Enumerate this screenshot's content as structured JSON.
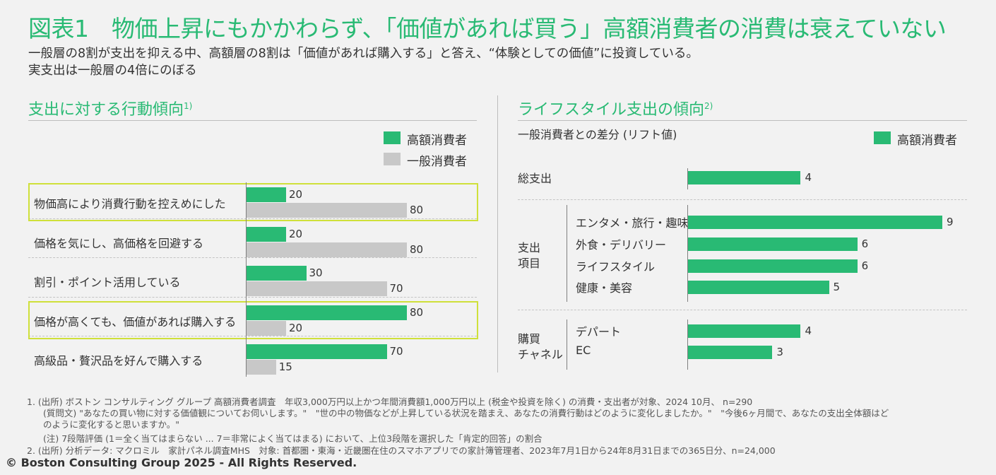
{
  "title": "図表1　物価上昇にもかかわらず、「価値があれば買う」高額消費者の消費は衰えていない",
  "subtitle_lines": [
    "一般層の8割が支出を抑える中、高額層の8割は「価値があれば購入する」と答え、“体験としての価値”に投資している。",
    "実支出は一般層の4倍にのぼる"
  ],
  "colors": {
    "accent": "#29ba74",
    "gray_bar": "#c8c8c8",
    "highlight": "#cfe03a"
  },
  "chart_data": [
    {
      "type": "bar",
      "orientation": "horizontal",
      "title": "支出に対する行動傾向",
      "title_sup": "1)",
      "categories": [
        "物価高により消費行動を控えめにした",
        "価格を気にし、高価格を回避する",
        "割引・ポイント活用している",
        "価格が高くても、価値があれば購入する",
        "高級品・贅沢品を好んで購入する"
      ],
      "series": [
        {
          "name": "高額消費者",
          "values": [
            20,
            20,
            30,
            80,
            70
          ]
        },
        {
          "name": "一般消費者",
          "values": [
            80,
            80,
            70,
            20,
            15
          ]
        }
      ],
      "highlighted_categories": [
        0,
        3
      ],
      "xlim": [
        0,
        100
      ]
    },
    {
      "type": "bar",
      "orientation": "horizontal",
      "title": "ライフスタイル支出の傾向",
      "title_sup": "2)",
      "subtitle": "一般消費者との差分 (リフト値)",
      "legend": "高額消費者",
      "groups": [
        {
          "label": "",
          "categories": [
            "総支出"
          ],
          "values": [
            4
          ]
        },
        {
          "label": "支出\n項目",
          "categories": [
            "エンタメ・旅行・趣味",
            "外食・デリバリー",
            "ライフスタイル",
            "健康・美容"
          ],
          "values": [
            9,
            6,
            6,
            5
          ]
        },
        {
          "label": "購買\nチャネル",
          "categories": [
            "デパート",
            "EC"
          ],
          "values": [
            4,
            3
          ]
        }
      ],
      "xlim": [
        0,
        10
      ]
    }
  ],
  "notes": [
    "1. (出所) ボストン コンサルティング グループ 高額消費者調査　年収3,000万円以上かつ年間消費額1,000万円以上 (税金や投資を除く) の消費・支出者が対象、2024 10月、 n=290",
    "(質問文) \"あなたの買い物に対する価値観についてお伺いします。\"　\"世の中の物価などが上昇している状況を踏まえ、あなたの消費行動はどのように変化しましたか。\"　\"今後6ヶ月間で、あなたの支出全体額はど",
    "のように変化すると思いますか。\"",
    "(注) 7段階評価 (1＝全く当てはまらない ... 7＝非常によく当てはまる) において、上位3段階を選択した「肯定的回答」の割合",
    "2. (出所) 分析データ: マクロミル　家計パネル調査MHS　対象: 首都圏・東海・近畿圏在住のスマホアプリでの家計簿管理者、2023年7月1日から24年8月31日までの365日分、n=24,000"
  ],
  "copyright": "© Boston Consulting Group 2025 - All Rights Reserved."
}
